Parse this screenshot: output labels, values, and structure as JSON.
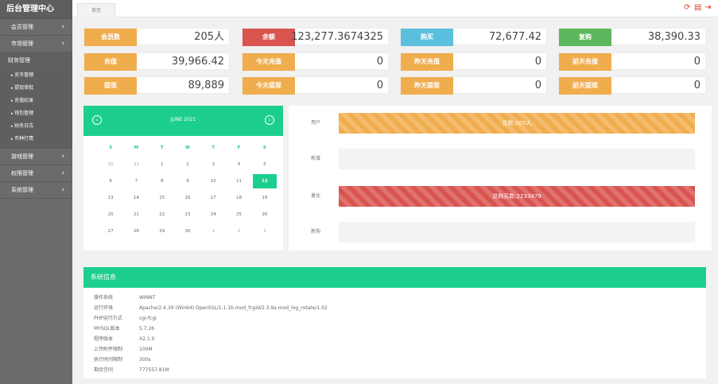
{
  "sidebar": {
    "brand": "后台管理中心",
    "items": [
      {
        "label": "会员管理"
      },
      {
        "label": "市场管理"
      },
      {
        "label": "财务管理"
      },
      {
        "label": "游戏管理"
      },
      {
        "label": "权限管理"
      },
      {
        "label": "系统管理"
      }
    ],
    "finance_sub": [
      "充币管理",
      "提现审批",
      "充值纪录",
      "钱包管理",
      "财务日志",
      "币种行情"
    ]
  },
  "topbar": {
    "tab": "首页",
    "icons": [
      "refresh-icon",
      "trash-icon",
      "logout-icon"
    ]
  },
  "stats": [
    {
      "label": "会员数",
      "value": "205人",
      "color": "#f0ad4e"
    },
    {
      "label": "余额",
      "value": "123,277.3674325",
      "color": "#d9534f"
    },
    {
      "label": "购买",
      "value": "72,677.42",
      "color": "#5bc0de"
    },
    {
      "label": "复购",
      "value": "38,390.33",
      "color": "#5cb85c"
    },
    {
      "label": "充值",
      "value": "39,966.42",
      "color": "#f0ad4e"
    },
    {
      "label": "今天充值",
      "value": "0",
      "color": "#f0ad4e"
    },
    {
      "label": "昨天充值",
      "value": "0",
      "color": "#f0ad4e"
    },
    {
      "label": "前天充值",
      "value": "0",
      "color": "#f0ad4e"
    },
    {
      "label": "提现",
      "value": "89,889",
      "color": "#f0ad4e"
    },
    {
      "label": "今天提现",
      "value": "0",
      "color": "#f0ad4e"
    },
    {
      "label": "昨天提现",
      "value": "0",
      "color": "#f0ad4e"
    },
    {
      "label": "前天提现",
      "value": "0",
      "color": "#f0ad4e"
    }
  ],
  "calendar": {
    "title": "JUNE 2021",
    "weekdays": [
      "S",
      "M",
      "T",
      "W",
      "T",
      "F",
      "S"
    ],
    "rows": [
      [
        "30",
        "31",
        "1",
        "2",
        "3",
        "4",
        "5"
      ],
      [
        "6",
        "7",
        "8",
        "9",
        "10",
        "11",
        "12"
      ],
      [
        "13",
        "14",
        "15",
        "16",
        "17",
        "18",
        "19"
      ],
      [
        "20",
        "21",
        "22",
        "23",
        "24",
        "25",
        "26"
      ],
      [
        "27",
        "28",
        "29",
        "30",
        "1",
        "2",
        "3"
      ]
    ],
    "today": "12"
  },
  "progress": [
    {
      "label": "用户",
      "text": "总数:205人",
      "fill": 1.0,
      "style": "orange"
    },
    {
      "label": "新增",
      "text": "",
      "fill": 0,
      "style": "orange"
    },
    {
      "label": "量化",
      "text": "总购买数:2233479",
      "fill": 1.0,
      "style": "red"
    },
    {
      "label": "新购",
      "text": "",
      "fill": 0,
      "style": "red"
    }
  ],
  "sysinfo": {
    "title": "系统信息",
    "rows": [
      {
        "k": "操作系统",
        "v": "WINNT"
      },
      {
        "k": "运行环境",
        "v": "Apache/2.4.39 (Win64) OpenSSL/1.1.1b mod_fcgid/2.3.9a mod_log_rotate/1.02"
      },
      {
        "k": "PHP运行方式",
        "v": "cgi-fcgi"
      },
      {
        "k": "MYSQL版本",
        "v": "5.7.26"
      },
      {
        "k": "程序版本",
        "v": "X2.1.0"
      },
      {
        "k": "上传附件限制",
        "v": "100M"
      },
      {
        "k": "执行时间限制",
        "v": "300s"
      },
      {
        "k": "剩余空间",
        "v": "777557.81M"
      }
    ]
  }
}
